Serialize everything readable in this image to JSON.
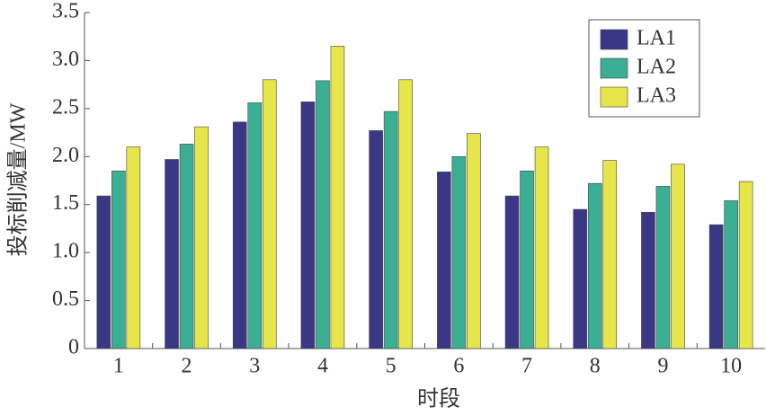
{
  "chart_data": {
    "type": "bar",
    "x_label": "时段",
    "y_label": "投标削减量/MW",
    "categories": [
      "1",
      "2",
      "3",
      "4",
      "5",
      "6",
      "7",
      "8",
      "9",
      "10"
    ],
    "series": [
      {
        "name": "LA1",
        "color": "#3b3787",
        "values": [
          1.59,
          1.97,
          2.36,
          2.57,
          2.27,
          1.84,
          1.59,
          1.45,
          1.42,
          1.29
        ]
      },
      {
        "name": "LA2",
        "color": "#3aaf94",
        "values": [
          1.85,
          2.13,
          2.56,
          2.79,
          2.47,
          2.0,
          1.85,
          1.72,
          1.69,
          1.54
        ]
      },
      {
        "name": "LA3",
        "color": "#e6e64a",
        "values": [
          2.1,
          2.31,
          2.8,
          3.15,
          2.8,
          2.24,
          2.1,
          1.96,
          1.92,
          1.74
        ]
      }
    ],
    "ylim": [
      0,
      3.5
    ],
    "yticks": [
      0,
      0.5,
      {
        "value": 1,
        "label": "1.0"
      },
      1.5,
      {
        "value": 2,
        "label": "2.0"
      },
      2.5,
      {
        "value": 3,
        "label": "3.0"
      },
      3.5
    ],
    "legend": "upper-right"
  }
}
